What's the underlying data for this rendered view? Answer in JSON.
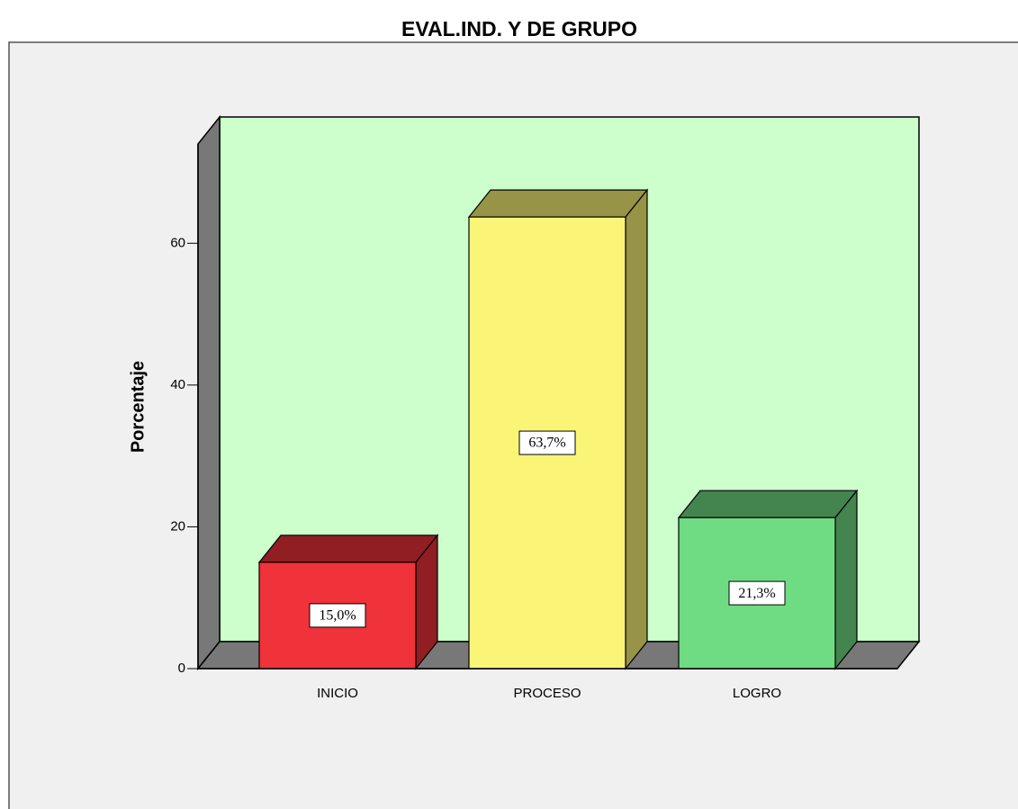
{
  "chart_data": {
    "type": "bar3d",
    "title": "EVAL.IND. Y DE GRUPO",
    "ylabel": "Porcentaje",
    "categories": [
      "INICIO",
      "PROCESO",
      "LOGRO"
    ],
    "values": [
      15.0,
      63.7,
      21.3
    ],
    "value_labels": [
      "15,0%",
      "63,7%",
      "21,3%"
    ],
    "colors": [
      "#f0323a",
      "#fbf577",
      "#6fdc84"
    ],
    "ylim": [
      0,
      74
    ],
    "yticks": [
      0,
      20,
      40,
      60
    ]
  }
}
